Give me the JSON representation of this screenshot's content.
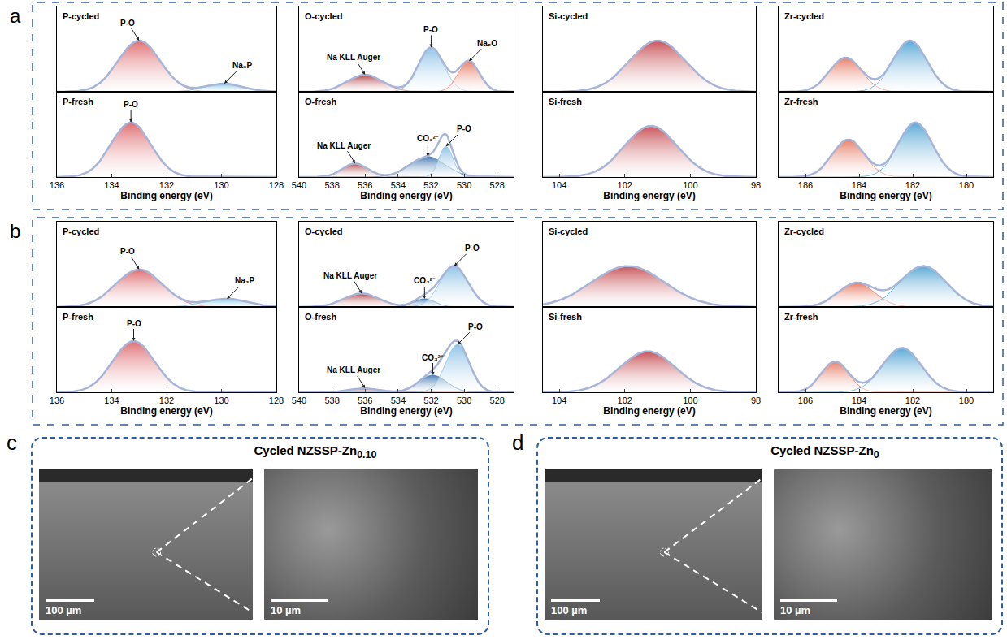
{
  "chart_data": [
    {
      "type": "xps",
      "title": "P-cycled",
      "xlim": [
        136,
        128
      ],
      "ylim": [
        0,
        1.25
      ],
      "tick_labels": false,
      "peaks": [
        {
          "label": "P-O",
          "center": 133.0,
          "height": 0.75,
          "fwhm": 1.8,
          "color": "#e06f73"
        },
        {
          "label": "Na₃P",
          "center": 129.9,
          "height": 0.12,
          "fwhm": 1.6,
          "color": "#7cc6e0"
        }
      ]
    },
    {
      "type": "xps",
      "title": "P-fresh",
      "xlim": [
        136,
        128
      ],
      "xticks": [
        136,
        134,
        132,
        130,
        128
      ],
      "ylim": [
        0,
        1.25
      ],
      "tick_labels": "x",
      "x_label": "Binding energy (eV)",
      "peaks": [
        {
          "label": "P-O",
          "center": 133.3,
          "height": 0.8,
          "fwhm": 1.7,
          "color": "#e06f73"
        }
      ]
    },
    {
      "type": "xps",
      "title": "O-cycled",
      "xlim": [
        540,
        527
      ],
      "ylim": [
        0,
        1.25
      ],
      "tick_labels": false,
      "peaks": [
        {
          "label": "Na KLL Auger",
          "center": 536.0,
          "height": 0.25,
          "fwhm": 2.5,
          "color": "#b5474b"
        },
        {
          "label": "P-O",
          "center": 532.0,
          "height": 0.65,
          "fwhm": 1.8,
          "color": "#8fc3e6"
        },
        {
          "label": "Na₂O",
          "center": 529.7,
          "height": 0.45,
          "fwhm": 1.5,
          "color": "#e8806a"
        }
      ]
    },
    {
      "type": "xps",
      "title": "O-fresh",
      "xlim": [
        540,
        527
      ],
      "xticks": [
        540,
        538,
        536,
        534,
        532,
        530,
        528
      ],
      "ylim": [
        0,
        1.25
      ],
      "tick_labels": "x",
      "x_label": "Binding energy (eV)",
      "peaks": [
        {
          "label": "Na KLL Auger",
          "center": 536.6,
          "height": 0.2,
          "fwhm": 1.8,
          "color": "#b5474b"
        },
        {
          "label": "CO₃²⁻",
          "center": 532.2,
          "height": 0.3,
          "fwhm": 2.5,
          "color": "#4a7fb5"
        },
        {
          "label": "P-O",
          "center": 531.1,
          "height": 0.45,
          "fwhm": 1.0,
          "color": "#8fc3e6"
        }
      ]
    },
    {
      "type": "xps",
      "title": "Si-cycled",
      "xlim": [
        104.5,
        98
      ],
      "ylim": [
        0,
        1.25
      ],
      "tick_labels": false,
      "peaks": [
        {
          "center": 101.0,
          "height": 0.75,
          "fwhm": 2.0,
          "color": "#c9555a"
        }
      ]
    },
    {
      "type": "xps",
      "title": "Si-fresh",
      "xlim": [
        104.5,
        98
      ],
      "xticks": [
        104,
        102,
        100,
        98
      ],
      "ylim": [
        0,
        1.25
      ],
      "tick_labels": "x",
      "x_label": "Binding energy (eV)",
      "peaks": [
        {
          "center": 101.2,
          "height": 0.75,
          "fwhm": 1.9,
          "color": "#c9555a"
        }
      ]
    },
    {
      "type": "xps",
      "title": "Zr-cycled",
      "xlim": [
        187,
        179
      ],
      "ylim": [
        0,
        1.25
      ],
      "tick_labels": false,
      "peaks": [
        {
          "center": 184.5,
          "height": 0.5,
          "fwhm": 1.4,
          "color": "#e8806a"
        },
        {
          "center": 182.1,
          "height": 0.75,
          "fwhm": 1.5,
          "color": "#5aa9d6"
        }
      ]
    },
    {
      "type": "xps",
      "title": "Zr-fresh",
      "xlim": [
        187,
        179
      ],
      "xticks": [
        186,
        184,
        182,
        180
      ],
      "ylim": [
        0,
        1.25
      ],
      "tick_labels": "x",
      "x_label": "Binding energy (eV)",
      "peaks": [
        {
          "center": 184.4,
          "height": 0.55,
          "fwhm": 1.4,
          "color": "#e8806a"
        },
        {
          "center": 181.9,
          "height": 0.8,
          "fwhm": 1.5,
          "color": "#5aa9d6"
        }
      ]
    },
    {
      "type": "xps",
      "title": "P-cycled",
      "xlim": [
        136,
        128
      ],
      "ylim": [
        0,
        1.25
      ],
      "tick_labels": false,
      "peaks": [
        {
          "label": "P-O",
          "center": 133.0,
          "height": 0.55,
          "fwhm": 2.0,
          "color": "#e06f73"
        },
        {
          "label": "Na₃P",
          "center": 129.8,
          "height": 0.12,
          "fwhm": 1.8,
          "color": "#7cc6e0"
        }
      ]
    },
    {
      "type": "xps",
      "title": "P-fresh",
      "xlim": [
        136,
        128
      ],
      "xticks": [
        136,
        134,
        132,
        130,
        128
      ],
      "ylim": [
        0,
        1.25
      ],
      "tick_labels": "x",
      "x_label": "Binding energy (eV)",
      "peaks": [
        {
          "label": "P-O",
          "center": 133.2,
          "height": 0.75,
          "fwhm": 1.8,
          "color": "#e06f73"
        }
      ]
    },
    {
      "type": "xps",
      "title": "O-cycled",
      "xlim": [
        540,
        527
      ],
      "ylim": [
        0,
        1.25
      ],
      "tick_labels": false,
      "peaks": [
        {
          "label": "Na KLL Auger",
          "center": 536.2,
          "height": 0.2,
          "fwhm": 2.5,
          "color": "#b5474b"
        },
        {
          "label": "CO₃²⁻",
          "center": 532.4,
          "height": 0.12,
          "fwhm": 1.5,
          "color": "#4a7fb5"
        },
        {
          "label": "P-O",
          "center": 530.6,
          "height": 0.6,
          "fwhm": 2.0,
          "color": "#8fc3e6"
        }
      ]
    },
    {
      "type": "xps",
      "title": "O-fresh",
      "xlim": [
        540,
        527
      ],
      "xticks": [
        540,
        538,
        536,
        534,
        532,
        530,
        528
      ],
      "ylim": [
        0,
        1.25
      ],
      "tick_labels": "x",
      "x_label": "Binding energy (eV)",
      "peaks": [
        {
          "label": "Na KLL Auger",
          "center": 536.0,
          "height": 0.06,
          "fwhm": 2.0,
          "color": "#b5474b"
        },
        {
          "label": "CO₃²⁻",
          "center": 531.9,
          "height": 0.25,
          "fwhm": 2.0,
          "color": "#4a7fb5"
        },
        {
          "label": "P-O",
          "center": 530.4,
          "height": 0.7,
          "fwhm": 1.7,
          "color": "#8fc3e6"
        }
      ]
    },
    {
      "type": "xps",
      "title": "Si-cycled",
      "xlim": [
        104.5,
        98
      ],
      "ylim": [
        0,
        1.25
      ],
      "tick_labels": false,
      "peaks": [
        {
          "center": 101.9,
          "height": 0.6,
          "fwhm": 2.6,
          "color": "#c9555a"
        }
      ]
    },
    {
      "type": "xps",
      "title": "Si-fresh",
      "xlim": [
        104.5,
        98
      ],
      "xticks": [
        104,
        102,
        100,
        98
      ],
      "ylim": [
        0,
        1.25
      ],
      "tick_labels": "x",
      "x_label": "Binding energy (eV)",
      "peaks": [
        {
          "center": 101.3,
          "height": 0.6,
          "fwhm": 2.0,
          "color": "#c9555a"
        }
      ]
    },
    {
      "type": "xps",
      "title": "Zr-cycled",
      "xlim": [
        187,
        179
      ],
      "ylim": [
        0,
        1.25
      ],
      "tick_labels": false,
      "peaks": [
        {
          "center": 184.1,
          "height": 0.35,
          "fwhm": 1.6,
          "color": "#e8806a"
        },
        {
          "center": 181.6,
          "height": 0.6,
          "fwhm": 2.0,
          "color": "#5aa9d6"
        }
      ]
    },
    {
      "type": "xps",
      "title": "Zr-fresh",
      "xlim": [
        187,
        179
      ],
      "xticks": [
        186,
        184,
        182,
        180
      ],
      "ylim": [
        0,
        1.25
      ],
      "tick_labels": "x",
      "x_label": "Binding energy (eV)",
      "peaks": [
        {
          "center": 184.9,
          "height": 0.45,
          "fwhm": 1.2,
          "color": "#e8806a"
        },
        {
          "center": 182.4,
          "height": 0.65,
          "fwhm": 1.7,
          "color": "#5aa9d6"
        }
      ]
    }
  ],
  "panel_labels": [
    "a",
    "b"
  ],
  "images": [
    {
      "label": "c",
      "title": "Cycled NZSSP-Zn",
      "title_subscript": "0.10",
      "scale_bars": [
        "100 µm",
        "10 µm"
      ]
    },
    {
      "label": "d",
      "title": "Cycled NZSSP-Zn",
      "title_subscript": "0",
      "scale_bars": [
        "100 µm",
        "10 µm"
      ]
    }
  ]
}
